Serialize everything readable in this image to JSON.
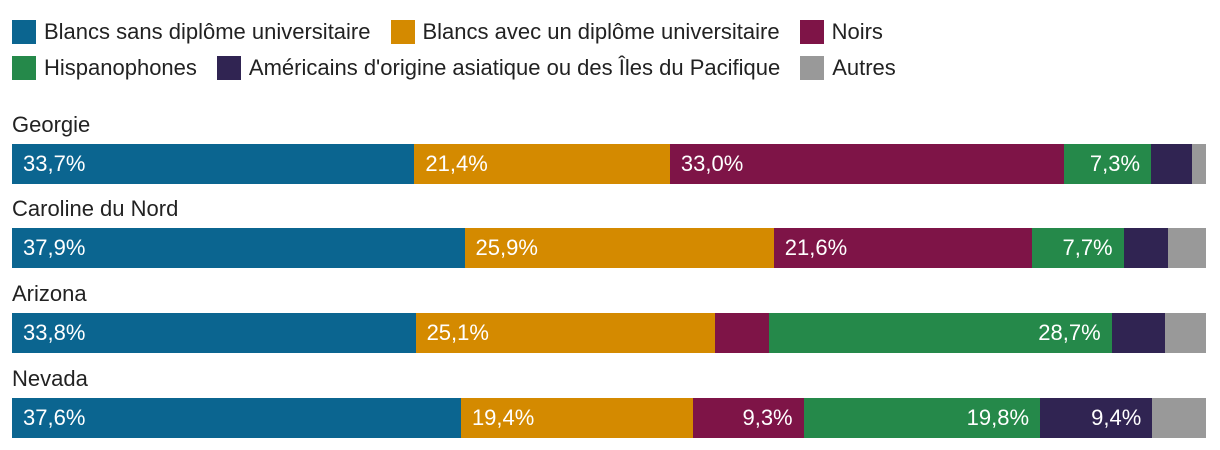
{
  "chart_data": {
    "type": "bar",
    "orientation": "horizontal",
    "stacked": true,
    "normalized": true,
    "xlim": [
      0,
      100
    ],
    "categories": [
      "Georgie",
      "Caroline du Nord",
      "Arizona",
      "Nevada"
    ],
    "series": [
      {
        "name": "Blancs sans diplôme universitaire",
        "color": "#0b6590",
        "values": [
          33.7,
          37.9,
          33.8,
          37.6
        ],
        "labels": [
          "33,7%",
          "37,9%",
          "33,8%",
          "37,6%"
        ]
      },
      {
        "name": "Blancs avec un diplôme universitaire",
        "color": "#d48a00",
        "values": [
          21.4,
          25.9,
          25.1,
          19.4
        ],
        "labels": [
          "21,4%",
          "25,9%",
          "25,1%",
          "19,4%"
        ]
      },
      {
        "name": "Noirs",
        "color": "#7e1447",
        "values": [
          33.0,
          21.6,
          4.5,
          9.3
        ],
        "labels": [
          "33,0%",
          "21,6%",
          "",
          "9,3%"
        ]
      },
      {
        "name": "Hispanophones",
        "color": "#25894a",
        "values": [
          7.3,
          7.7,
          28.7,
          19.8
        ],
        "labels": [
          "7,3%",
          "7,7%",
          "28,7%",
          "19,8%"
        ]
      },
      {
        "name": "Américains d'origine asiatique ou des Îles du Pacifique",
        "color": "#302452",
        "values": [
          3.4,
          3.7,
          4.5,
          9.4
        ],
        "labels": [
          "",
          "",
          "",
          "9,4%"
        ]
      },
      {
        "name": "Autres",
        "color": "#999999",
        "values": [
          1.2,
          3.2,
          3.4,
          4.5
        ],
        "labels": [
          "",
          "",
          "",
          ""
        ]
      }
    ]
  }
}
